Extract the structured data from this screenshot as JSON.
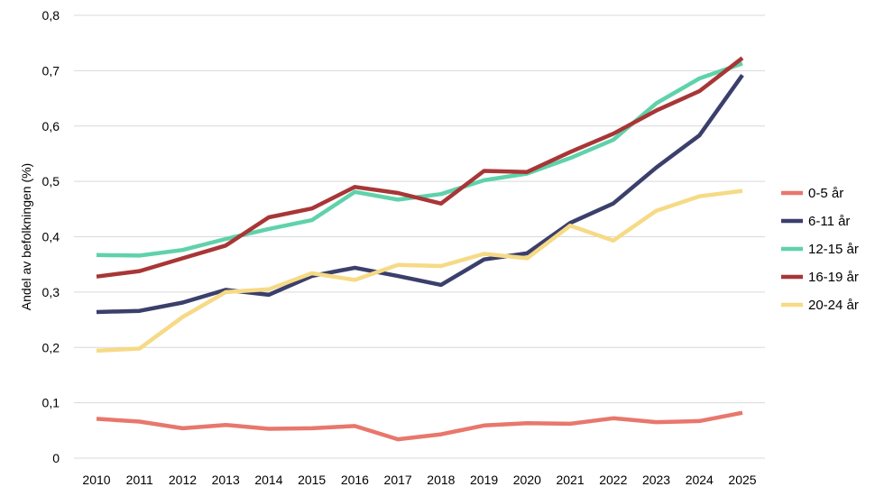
{
  "chart_data": {
    "type": "line",
    "title": "",
    "xlabel": "",
    "ylabel": "Andel av befolkningen (%)",
    "ylim": [
      0,
      0.8
    ],
    "yticks": [
      0,
      0.1,
      0.2,
      0.3,
      0.4,
      0.5,
      0.6,
      0.7,
      0.8
    ],
    "ytick_labels": [
      "0",
      "0,1",
      "0,2",
      "0,3",
      "0,4",
      "0,5",
      "0,6",
      "0,7",
      "0,8"
    ],
    "grid": "horizontal",
    "legend_position": "right",
    "x": [
      "2010",
      "2011",
      "2012",
      "2013",
      "2014",
      "2015",
      "2016",
      "2017",
      "2018",
      "2019",
      "2020",
      "2021",
      "2022",
      "2023",
      "2024",
      "2025"
    ],
    "series": [
      {
        "name": "0-5 år",
        "color": "#e8776c",
        "values": [
          0.071,
          0.066,
          0.054,
          0.06,
          0.053,
          0.054,
          0.058,
          0.034,
          0.043,
          0.059,
          0.063,
          0.062,
          0.072,
          0.065,
          0.067,
          0.082
        ]
      },
      {
        "name": "6-11 år",
        "color": "#3b3f6b",
        "values": [
          0.264,
          0.266,
          0.281,
          0.304,
          0.295,
          0.329,
          0.344,
          0.329,
          0.313,
          0.359,
          0.37,
          0.425,
          0.46,
          0.525,
          0.583,
          0.692
        ]
      },
      {
        "name": "12-15 år",
        "color": "#5fd2aa",
        "values": [
          0.367,
          0.366,
          0.376,
          0.396,
          0.414,
          0.43,
          0.481,
          0.467,
          0.477,
          0.502,
          0.514,
          0.542,
          0.575,
          0.641,
          0.686,
          0.713
        ]
      },
      {
        "name": "16-19 år",
        "color": "#a83636",
        "values": [
          0.328,
          0.338,
          0.361,
          0.384,
          0.435,
          0.451,
          0.49,
          0.479,
          0.46,
          0.519,
          0.517,
          0.553,
          0.586,
          0.628,
          0.663,
          0.723
        ]
      },
      {
        "name": "20-24 år",
        "color": "#f6da85",
        "values": [
          0.194,
          0.198,
          0.255,
          0.3,
          0.305,
          0.334,
          0.322,
          0.349,
          0.347,
          0.369,
          0.361,
          0.42,
          0.393,
          0.447,
          0.473,
          0.483
        ]
      }
    ]
  }
}
